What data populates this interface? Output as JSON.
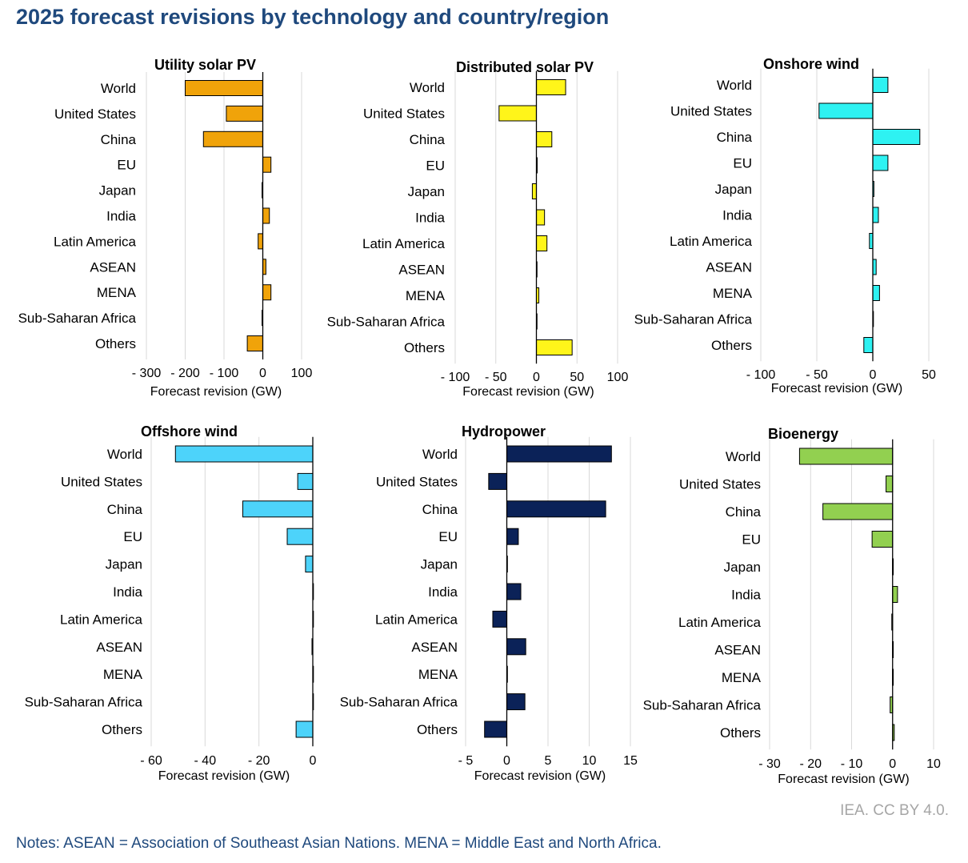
{
  "title": "2025 forecast revisions by technology and country/region",
  "credit": "IEA. CC BY 4.0.",
  "notes": "Notes: ASEAN = Association of Southeast Asian Nations. MENA = Middle East and North Africa.",
  "chart_data": [
    {
      "type": "bar",
      "orientation": "horizontal",
      "title": "Utility solar PV",
      "xlabel": "Forecast revision (GW)",
      "color": "#F0A30A",
      "categories": [
        "World",
        "United States",
        "China",
        "EU",
        "Japan",
        "India",
        "Latin America",
        "ASEAN",
        "MENA",
        "Sub-Saharan Africa",
        "Others"
      ],
      "values": [
        -200,
        -94,
        -153,
        21,
        -2,
        17,
        -12,
        8,
        21,
        -2,
        -40
      ],
      "xlim": [
        -300,
        100
      ],
      "ticks": [
        -300,
        -200,
        -100,
        0,
        100
      ],
      "tick_labels": [
        "- 300",
        "- 200",
        "- 100",
        "0",
        "100"
      ]
    },
    {
      "type": "bar",
      "orientation": "horizontal",
      "title": "Distributed solar PV",
      "xlabel": "Forecast revision (GW)",
      "color": "#FFF51A",
      "categories": [
        "World",
        "United States",
        "China",
        "EU",
        "Japan",
        "India",
        "Latin America",
        "ASEAN",
        "MENA",
        "Sub-Saharan Africa",
        "Others"
      ],
      "values": [
        36,
        -46,
        19,
        1,
        -5,
        10,
        13,
        0,
        3,
        0,
        44
      ],
      "xlim": [
        -100,
        100
      ],
      "ticks": [
        -100,
        -50,
        0,
        50,
        100
      ],
      "tick_labels": [
        "- 100",
        "- 50",
        "0",
        "50",
        "100"
      ]
    },
    {
      "type": "bar",
      "orientation": "horizontal",
      "title": "Onshore wind",
      "xlabel": "Forecast revision (GW)",
      "color": "#2EF2F2",
      "categories": [
        "World",
        "United States",
        "China",
        "EU",
        "Japan",
        "India",
        "Latin America",
        "ASEAN",
        "MENA",
        "Sub-Saharan Africa",
        "Others"
      ],
      "values": [
        13.5,
        -48,
        42,
        13.5,
        1,
        5,
        -3,
        3,
        6,
        0,
        -8
      ],
      "xlim": [
        -100,
        50
      ],
      "ticks": [
        -100,
        -50,
        0,
        50
      ],
      "tick_labels": [
        "- 100",
        "- 50",
        "0",
        "50"
      ]
    },
    {
      "type": "bar",
      "orientation": "horizontal",
      "title": "Offshore wind",
      "xlabel": "Forecast revision (GW)",
      "color": "#4DD3FA",
      "categories": [
        "World",
        "United States",
        "China",
        "EU",
        "Japan",
        "India",
        "Latin America",
        "ASEAN",
        "MENA",
        "Sub-Saharan Africa",
        "Others"
      ],
      "values": [
        -51,
        -5.6,
        -26,
        -9.5,
        -2.7,
        0,
        0,
        -0.3,
        0,
        0,
        -6.2
      ],
      "xlim": [
        -60,
        0
      ],
      "ticks": [
        -60,
        -40,
        -20,
        0
      ],
      "tick_labels": [
        "- 60",
        "- 40",
        "- 20",
        "0"
      ]
    },
    {
      "type": "bar",
      "orientation": "horizontal",
      "title": "Hydropower",
      "xlabel": "Forecast revision (GW)",
      "color": "#0B2258",
      "categories": [
        "World",
        "United States",
        "China",
        "EU",
        "Japan",
        "India",
        "Latin America",
        "ASEAN",
        "MENA",
        "Sub-Saharan Africa",
        "Others"
      ],
      "values": [
        12.7,
        -2.2,
        12,
        1.4,
        0,
        1.7,
        -1.7,
        2.3,
        0,
        2.2,
        -2.7
      ],
      "xlim": [
        -5,
        15
      ],
      "ticks": [
        -5,
        0,
        5,
        10,
        15
      ],
      "tick_labels": [
        "- 5",
        "0",
        "5",
        "10",
        "15"
      ]
    },
    {
      "type": "bar",
      "orientation": "horizontal",
      "title": "Bioenergy",
      "xlabel": "Forecast revision (GW)",
      "color": "#92D050",
      "categories": [
        "World",
        "United States",
        "China",
        "EU",
        "Japan",
        "India",
        "Latin America",
        "ASEAN",
        "MENA",
        "Sub-Saharan Africa",
        "Others"
      ],
      "values": [
        -22.7,
        -1.6,
        -17,
        -5,
        0,
        1.2,
        -0.2,
        0,
        0,
        -0.6,
        0.4
      ],
      "xlim": [
        -30,
        10
      ],
      "ticks": [
        -30,
        -20,
        -10,
        0,
        10
      ],
      "tick_labels": [
        "- 30",
        "- 20",
        "- 10",
        "0",
        "10"
      ]
    }
  ]
}
